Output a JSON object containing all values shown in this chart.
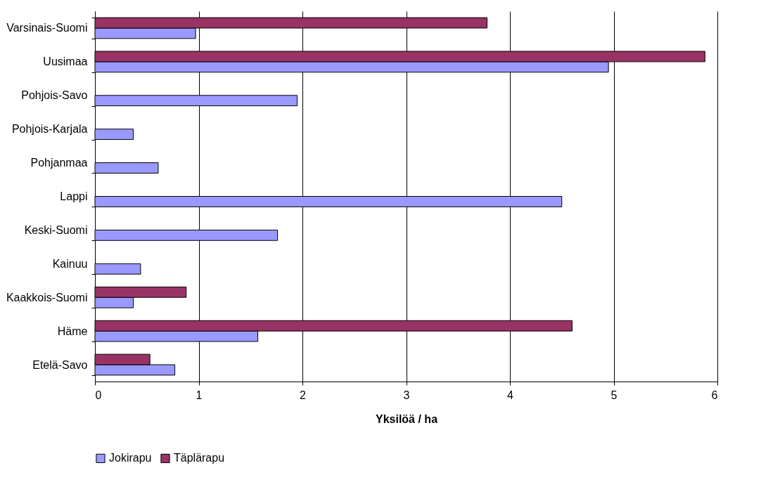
{
  "chart_data": {
    "type": "bar",
    "orientation": "horizontal",
    "xlabel": "Yksilöä / ha",
    "categories": [
      "Varsinais-Suomi",
      "Uusimaa",
      "Pohjois-Savo",
      "Pohjois-Karjala",
      "Pohjanmaa",
      "Lappi",
      "Keski-Suomi",
      "Kainuu",
      "Kaakkois-Suomi",
      "Häme",
      "Etelä-Savo"
    ],
    "series": [
      {
        "name": "Jokirapu",
        "color": "#9999ff",
        "values": [
          0.97,
          4.95,
          1.95,
          0.37,
          0.61,
          4.5,
          1.76,
          0.44,
          0.37,
          1.57,
          0.77
        ]
      },
      {
        "name": "Täplärapu",
        "color": "#993366",
        "values": [
          3.78,
          5.88,
          null,
          null,
          null,
          null,
          null,
          null,
          0.88,
          4.6,
          0.53
        ]
      }
    ],
    "xlim": [
      0,
      6
    ],
    "xticks": [
      0,
      1,
      2,
      3,
      4,
      5,
      6
    ],
    "grid": "x",
    "legend": "bottom"
  }
}
